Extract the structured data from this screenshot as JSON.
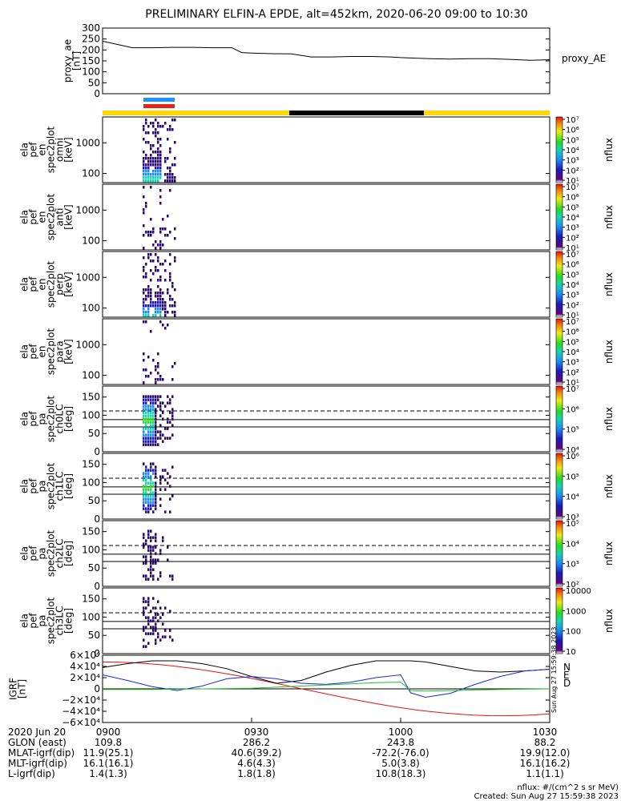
{
  "title": "PRELIMINARY ELFIN-A EPDE, alt=452km, 2020-06-20 09:00 to 10:30",
  "colors": {
    "blue_bar": "#1e90ff",
    "red_bar": "#e8201a",
    "yellow": "#ffd700",
    "black": "#000000",
    "line_red": "#e81010",
    "line_blue": "#1a2ad6",
    "line_green": "#22c022"
  },
  "chart_data": [
    {
      "id": "proxy_ae",
      "type": "line",
      "ylabel_lines": [
        "proxy_ae",
        "[nT]"
      ],
      "legend": "proxy_AE",
      "ylim": [
        0,
        300
      ],
      "yticks": [
        "0",
        "50",
        "100",
        "150",
        "200",
        "250",
        "300"
      ],
      "x_minutes": [
        0,
        3,
        6,
        10,
        14,
        18,
        22,
        26,
        28,
        30,
        34,
        38,
        42,
        46,
        50,
        54,
        58,
        60,
        62,
        66,
        70,
        74,
        78,
        82,
        86,
        90
      ],
      "values": [
        240,
        225,
        210,
        210,
        212,
        212,
        210,
        210,
        188,
        186,
        183,
        182,
        168,
        168,
        170,
        170,
        168,
        165,
        163,
        160,
        158,
        160,
        160,
        157,
        153,
        155
      ]
    },
    {
      "id": "ch_omni",
      "type": "heatmap",
      "ylabel_lines": [
        "ela",
        "pef",
        "en",
        "spec2plot",
        "omni",
        "[keV]"
      ],
      "yticks": [
        "100",
        "1000"
      ],
      "colorbar": {
        "label": "nflux",
        "ticks": [
          "10¹",
          "10²",
          "10³",
          "10⁴",
          "10⁵",
          "10⁶",
          "10⁷"
        ]
      }
    },
    {
      "id": "ch_anti",
      "type": "heatmap",
      "ylabel_lines": [
        "ela",
        "pef",
        "en",
        "spec2plot",
        "anti",
        "[keV]"
      ],
      "yticks": [
        "100",
        "1000"
      ],
      "colorbar": {
        "label": "nflux",
        "ticks": [
          "10¹",
          "10²",
          "10³",
          "10⁴",
          "10⁵",
          "10⁶",
          "10⁷"
        ]
      }
    },
    {
      "id": "ch_perp",
      "type": "heatmap",
      "ylabel_lines": [
        "ela",
        "pef",
        "en",
        "spec2plot",
        "perp",
        "[keV]"
      ],
      "yticks": [
        "100",
        "1000"
      ],
      "colorbar": {
        "label": "nflux",
        "ticks": [
          "10¹",
          "10²",
          "10³",
          "10⁴",
          "10⁵",
          "10⁶",
          "10⁷"
        ]
      }
    },
    {
      "id": "ch_para",
      "type": "heatmap",
      "ylabel_lines": [
        "ela",
        "pef",
        "en",
        "spec2plot",
        "para",
        "[keV]"
      ],
      "yticks": [
        "100",
        "1000"
      ],
      "colorbar": {
        "label": "nflux",
        "ticks": [
          "10¹",
          "10²",
          "10³",
          "10⁴",
          "10⁵",
          "10⁶",
          "10⁷"
        ]
      }
    },
    {
      "id": "ch0LC",
      "type": "heatmap",
      "ylabel_lines": [
        "ela",
        "pef",
        "pa",
        "spec2plot",
        "ch0LC",
        "[deg]"
      ],
      "yticks": [
        "0",
        "50",
        "100",
        "150"
      ],
      "colorbar": {
        "label": "nflux",
        "ticks": [
          "10⁴",
          "10⁵",
          "10⁶",
          "10⁷"
        ]
      }
    },
    {
      "id": "ch1LC",
      "type": "heatmap",
      "ylabel_lines": [
        "ela",
        "pef",
        "pa",
        "spec2plot",
        "ch1LC",
        "[deg]"
      ],
      "yticks": [
        "0",
        "50",
        "100",
        "150"
      ],
      "colorbar": {
        "label": "nflux",
        "ticks": [
          "10³",
          "10⁴",
          "10⁵",
          "10⁶"
        ]
      }
    },
    {
      "id": "ch2LC",
      "type": "heatmap",
      "ylabel_lines": [
        "ela",
        "pef",
        "pa",
        "spec2plot",
        "ch2LC",
        "[deg]"
      ],
      "yticks": [
        "0",
        "50",
        "100",
        "150"
      ],
      "colorbar": {
        "label": "nflux",
        "ticks": [
          "10²",
          "10³",
          "10⁴",
          "10⁵"
        ]
      }
    },
    {
      "id": "ch3LC",
      "type": "heatmap",
      "ylabel_lines": [
        "ela",
        "pef",
        "pa",
        "spec2plot",
        "ch3LC",
        "[deg]"
      ],
      "yticks": [
        "0",
        "50",
        "100",
        "150"
      ],
      "colorbar": {
        "label": "nflux",
        "ticks": [
          "10",
          "100",
          "1000",
          "10000"
        ]
      }
    },
    {
      "id": "igrf",
      "type": "line",
      "ylabel_lines": [
        "IGRF",
        "[nT]"
      ],
      "ylim": [
        -60000,
        60000
      ],
      "yticks": [
        "−6×10⁴",
        "−4×10⁴",
        "−2×10⁴",
        "0",
        "2×10⁴",
        "4×10⁴",
        "6×10⁴"
      ],
      "legend": [
        "N",
        "E",
        "D"
      ],
      "x_minutes": [
        0,
        5,
        10,
        15,
        20,
        25,
        30,
        35,
        40,
        45,
        50,
        55,
        60,
        62,
        65,
        70,
        75,
        80,
        85,
        90
      ],
      "series": [
        {
          "name": "N",
          "values": [
            38000,
            45000,
            50000,
            50000,
            45000,
            36000,
            22000,
            10000,
            15000,
            30000,
            42000,
            50000,
            50000,
            50000,
            48000,
            40000,
            32000,
            30000,
            32000,
            35000
          ]
        },
        {
          "name": "E",
          "values": [
            25000,
            15000,
            4000,
            -3000,
            5000,
            18000,
            22000,
            18000,
            10000,
            8000,
            12000,
            20000,
            25000,
            -7000,
            -15000,
            -8000,
            8000,
            22000,
            32000,
            35000
          ]
        },
        {
          "name": "D",
          "values": [
            -1000,
            -1000,
            -1000,
            -500,
            0,
            500,
            1000,
            3000,
            5000,
            7000,
            9000,
            11000,
            12000,
            -3000,
            -4000,
            -3000,
            -2000,
            -1000,
            -500,
            0
          ]
        }
      ]
    }
  ],
  "time_axis": {
    "ticks": [
      "0900",
      "0930",
      "1000",
      "1030"
    ],
    "rows": [
      {
        "label": "2020 Jun 20",
        "values": [
          "0900",
          "0930",
          "1000",
          "1030"
        ]
      },
      {
        "label": "GLON (east)",
        "values": [
          "109.8",
          "286.2",
          "243.8",
          "88.2"
        ]
      },
      {
        "label": "MLAT-igrf(dip)",
        "values": [
          "11.9(25.1)",
          "40.6(39.2)",
          "-72.2(-76.0)",
          "19.9(12.0)"
        ]
      },
      {
        "label": "MLT-igrf(dip)",
        "values": [
          "16.1(16.1)",
          "4.6(4.3)",
          "5.0(3.8)",
          "16.1(16.2)"
        ]
      },
      {
        "label": "L-igrf(dip)",
        "values": [
          "1.4(1.3)",
          "1.8(1.8)",
          "10.8(18.3)",
          "1.1(1.1)"
        ]
      }
    ]
  },
  "footer": {
    "units": "nflux: #/(cm^2 s sr MeV)",
    "created": "Created: Sun Aug 27 15:59:38 2023"
  },
  "side_stamp": "Sun Aug 27 15:59:38 2023"
}
